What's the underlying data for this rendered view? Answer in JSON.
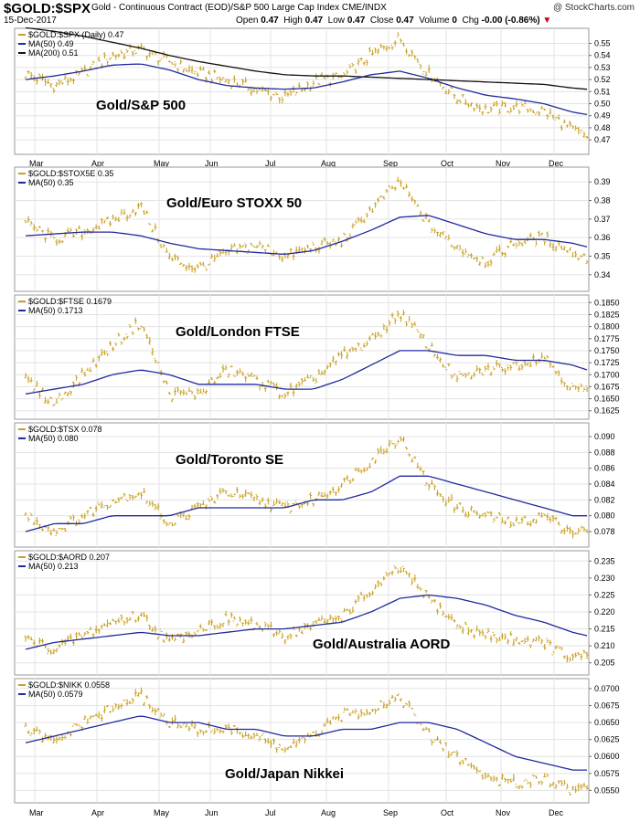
{
  "header": {
    "symbol": "$GOLD:$SPX",
    "description": "Gold - Continuous Contract (EOD)/S&P 500 Large Cap Index  CME/INDX",
    "brand": "@ StockCharts.com",
    "date": "15-Dec-2017",
    "open_label": "Open",
    "open": "0.47",
    "high_label": "High",
    "high": "0.47",
    "low_label": "Low",
    "low": "0.47",
    "close_label": "Close",
    "close": "0.47",
    "volume_label": "Volume",
    "volume": "0",
    "chg_label": "Chg",
    "chg": "-0.00 (-0.86%)"
  },
  "x_months": [
    "Mar",
    "Apr",
    "May",
    "Jun",
    "Jul",
    "Aug",
    "Sep",
    "Oct",
    "Nov",
    "Dec"
  ],
  "colors": {
    "price": "#c9a227",
    "ma50": "#1f2a9e",
    "ma200": "#111111",
    "grid": "#e3e3e3",
    "border": "#999999"
  },
  "chart_data": [
    {
      "type": "line",
      "title": "Gold/S&P 500",
      "legend": [
        {
          "label": "$GOLD:$SPX (Daily) 0.47",
          "color": "#c9a227"
        },
        {
          "label": "MA(50) 0.49",
          "color": "#1f2a9e"
        },
        {
          "label": "MA(200) 0.51",
          "color": "#111111"
        }
      ],
      "ylim": [
        0.461,
        0.561
      ],
      "yticks": [
        "0.55",
        "0.54",
        "0.53",
        "0.52",
        "0.51",
        "0.50",
        "0.49",
        "0.48",
        "0.47"
      ],
      "ytick_values": [
        0.55,
        0.54,
        0.53,
        0.52,
        0.51,
        0.5,
        0.49,
        0.48,
        0.47
      ],
      "x": [
        0,
        0.5,
        1,
        1.5,
        2,
        2.5,
        3,
        3.5,
        4,
        4.5,
        5,
        5.5,
        6,
        6.5,
        7,
        7.5,
        8,
        8.5,
        9,
        9.5,
        9.75
      ],
      "series": [
        {
          "kind": "price",
          "values": [
            0.525,
            0.515,
            0.525,
            0.54,
            0.545,
            0.535,
            0.525,
            0.52,
            0.512,
            0.505,
            0.518,
            0.522,
            0.54,
            0.554,
            0.525,
            0.505,
            0.495,
            0.497,
            0.494,
            0.478,
            0.473
          ]
        },
        {
          "kind": "ma50",
          "values": [
            0.52,
            0.523,
            0.527,
            0.532,
            0.533,
            0.528,
            0.52,
            0.515,
            0.513,
            0.512,
            0.513,
            0.518,
            0.524,
            0.527,
            0.521,
            0.513,
            0.507,
            0.504,
            0.5,
            0.493,
            0.491
          ]
        },
        {
          "kind": "ma200",
          "values": [
            0.563,
            0.56,
            0.556,
            0.551,
            0.546,
            0.54,
            0.535,
            0.531,
            0.527,
            0.524,
            0.523,
            0.523,
            0.522,
            0.521,
            0.52,
            0.519,
            0.518,
            0.517,
            0.516,
            0.513,
            0.512
          ]
        }
      ]
    },
    {
      "type": "line",
      "title": "Gold/Euro STOXX 50",
      "legend": [
        {
          "label": "$GOLD:$STOX5E 0.35",
          "color": "#c9a227"
        },
        {
          "label": "MA(50) 0.35",
          "color": "#1f2a9e"
        }
      ],
      "ylim": [
        0.333,
        0.397
      ],
      "yticks": [
        "0.39",
        "0.38",
        "0.37",
        "0.36",
        "0.35",
        "0.34"
      ],
      "ytick_values": [
        0.39,
        0.38,
        0.37,
        0.36,
        0.35,
        0.34
      ],
      "x": [
        0,
        0.5,
        1,
        1.5,
        2,
        2.5,
        3,
        3.5,
        4,
        4.5,
        5,
        5.5,
        6,
        6.5,
        7,
        7.5,
        8,
        8.5,
        9,
        9.5,
        9.75
      ],
      "series": [
        {
          "kind": "price",
          "values": [
            0.368,
            0.359,
            0.363,
            0.369,
            0.377,
            0.349,
            0.343,
            0.352,
            0.356,
            0.35,
            0.355,
            0.358,
            0.375,
            0.39,
            0.367,
            0.355,
            0.347,
            0.357,
            0.36,
            0.352,
            0.349
          ]
        },
        {
          "kind": "ma50",
          "values": [
            0.361,
            0.362,
            0.363,
            0.363,
            0.361,
            0.357,
            0.354,
            0.353,
            0.352,
            0.351,
            0.353,
            0.358,
            0.364,
            0.371,
            0.372,
            0.367,
            0.362,
            0.359,
            0.359,
            0.357,
            0.355
          ]
        }
      ]
    },
    {
      "type": "line",
      "title": "Gold/London FTSE",
      "legend": [
        {
          "label": "$GOLD:$FTSE 0.1679",
          "color": "#c9a227"
        },
        {
          "label": "MA(50) 0.1713",
          "color": "#1f2a9e"
        }
      ],
      "ylim": [
        0.1615,
        0.1862
      ],
      "yticks": [
        "0.1850",
        "0.1825",
        "0.1800",
        "0.1775",
        "0.1750",
        "0.1725",
        "0.1700",
        "0.1675",
        "0.1650",
        "0.1625"
      ],
      "ytick_values": [
        0.185,
        0.1825,
        0.18,
        0.1775,
        0.175,
        0.1725,
        0.17,
        0.1675,
        0.165,
        0.1625
      ],
      "x": [
        0,
        0.5,
        1,
        1.5,
        2,
        2.5,
        3,
        3.5,
        4,
        4.5,
        5,
        5.5,
        6,
        6.5,
        7,
        7.5,
        8,
        8.5,
        9,
        9.5,
        9.75
      ],
      "series": [
        {
          "kind": "price",
          "values": [
            0.169,
            0.164,
            0.17,
            0.176,
            0.181,
            0.166,
            0.166,
            0.171,
            0.169,
            0.166,
            0.169,
            0.174,
            0.177,
            0.183,
            0.176,
            0.169,
            0.171,
            0.172,
            0.174,
            0.167,
            0.167
          ]
        },
        {
          "kind": "ma50",
          "values": [
            0.166,
            0.167,
            0.168,
            0.17,
            0.171,
            0.17,
            0.168,
            0.168,
            0.168,
            0.167,
            0.167,
            0.169,
            0.172,
            0.175,
            0.175,
            0.174,
            0.174,
            0.173,
            0.173,
            0.172,
            0.171
          ]
        }
      ]
    },
    {
      "type": "line",
      "title": "Gold/Toronto SE",
      "legend": [
        {
          "label": "$GOLD:$TSX 0.078",
          "color": "#c9a227"
        },
        {
          "label": "MA(50) 0.080",
          "color": "#1f2a9e"
        }
      ],
      "ylim": [
        0.0765,
        0.0915
      ],
      "yticks": [
        "0.090",
        "0.088",
        "0.086",
        "0.084",
        "0.082",
        "0.080",
        "0.078"
      ],
      "ytick_values": [
        0.09,
        0.088,
        0.086,
        0.084,
        0.082,
        0.08,
        0.078
      ],
      "x": [
        0,
        0.5,
        1,
        1.5,
        2,
        2.5,
        3,
        3.5,
        4,
        4.5,
        5,
        5.5,
        6,
        6.5,
        7,
        7.5,
        8,
        8.5,
        9,
        9.5,
        9.75
      ],
      "series": [
        {
          "kind": "price",
          "values": [
            0.08,
            0.078,
            0.08,
            0.082,
            0.083,
            0.079,
            0.081,
            0.083,
            0.082,
            0.081,
            0.082,
            0.084,
            0.087,
            0.09,
            0.084,
            0.081,
            0.08,
            0.079,
            0.08,
            0.078,
            0.078
          ]
        },
        {
          "kind": "ma50",
          "values": [
            0.078,
            0.079,
            0.079,
            0.08,
            0.08,
            0.08,
            0.081,
            0.081,
            0.081,
            0.081,
            0.082,
            0.082,
            0.083,
            0.085,
            0.085,
            0.084,
            0.083,
            0.082,
            0.081,
            0.08,
            0.08
          ]
        }
      ]
    },
    {
      "type": "line",
      "title": "Gold/Australia AORD",
      "legend": [
        {
          "label": "$GOLD:$AORD 0.207",
          "color": "#c9a227"
        },
        {
          "label": "MA(50) 0.213",
          "color": "#1f2a9e"
        }
      ],
      "ylim": [
        0.2025,
        0.2375
      ],
      "yticks": [
        "0.235",
        "0.230",
        "0.225",
        "0.220",
        "0.215",
        "0.210",
        "0.205"
      ],
      "ytick_values": [
        0.235,
        0.23,
        0.225,
        0.22,
        0.215,
        0.21,
        0.205
      ],
      "x": [
        0,
        0.5,
        1,
        1.5,
        2,
        2.5,
        3,
        3.5,
        4,
        4.5,
        5,
        5.5,
        6,
        6.5,
        7,
        7.5,
        8,
        8.5,
        9,
        9.5,
        9.75
      ],
      "series": [
        {
          "kind": "price",
          "values": [
            0.212,
            0.209,
            0.213,
            0.217,
            0.219,
            0.211,
            0.215,
            0.218,
            0.216,
            0.213,
            0.216,
            0.219,
            0.226,
            0.233,
            0.224,
            0.216,
            0.213,
            0.212,
            0.211,
            0.206,
            0.207
          ]
        },
        {
          "kind": "ma50",
          "values": [
            0.209,
            0.211,
            0.212,
            0.213,
            0.214,
            0.213,
            0.213,
            0.214,
            0.215,
            0.215,
            0.216,
            0.217,
            0.22,
            0.224,
            0.225,
            0.224,
            0.222,
            0.219,
            0.217,
            0.214,
            0.213
          ]
        }
      ]
    },
    {
      "type": "line",
      "title": "Gold/Japan Nikkei",
      "legend": [
        {
          "label": "$GOLD:$NIKK 0.0558",
          "color": "#c9a227"
        },
        {
          "label": "MA(50) 0.0579",
          "color": "#1f2a9e"
        }
      ],
      "ylim": [
        0.0537,
        0.0712
      ],
      "yticks": [
        "0.0700",
        "0.0675",
        "0.0650",
        "0.0625",
        "0.0600",
        "0.0575",
        "0.0550"
      ],
      "ytick_values": [
        0.07,
        0.0675,
        0.065,
        0.0625,
        0.06,
        0.0575,
        0.055
      ],
      "x": [
        0,
        0.5,
        1,
        1.5,
        2,
        2.5,
        3,
        3.5,
        4,
        4.5,
        5,
        5.5,
        6,
        6.5,
        7,
        7.5,
        8,
        8.5,
        9,
        9.5,
        9.75
      ],
      "series": [
        {
          "kind": "price",
          "values": [
            0.064,
            0.062,
            0.065,
            0.067,
            0.069,
            0.065,
            0.064,
            0.064,
            0.063,
            0.061,
            0.063,
            0.066,
            0.067,
            0.069,
            0.063,
            0.06,
            0.057,
            0.056,
            0.057,
            0.055,
            0.0558
          ]
        },
        {
          "kind": "ma50",
          "values": [
            0.062,
            0.063,
            0.064,
            0.065,
            0.066,
            0.065,
            0.065,
            0.064,
            0.064,
            0.063,
            0.063,
            0.064,
            0.064,
            0.065,
            0.065,
            0.064,
            0.062,
            0.06,
            0.059,
            0.058,
            0.058
          ]
        }
      ]
    }
  ]
}
